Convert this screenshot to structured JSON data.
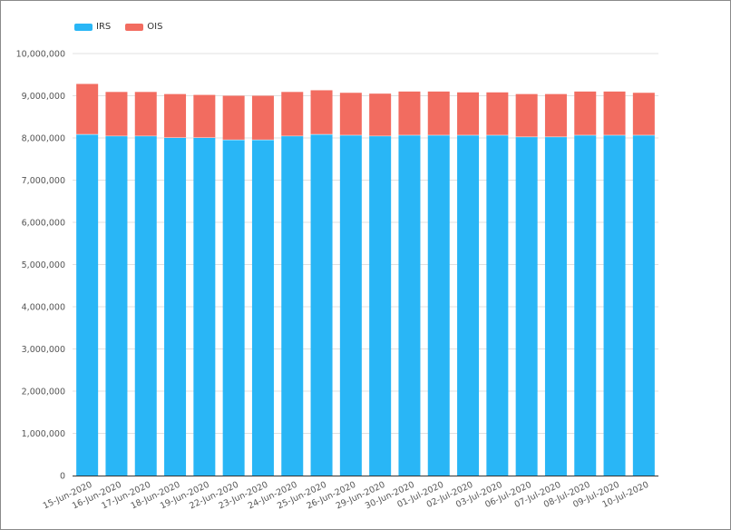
{
  "chart_data": {
    "type": "bar",
    "stacked": true,
    "title": "",
    "xlabel": "",
    "ylabel": "",
    "ylim": [
      0,
      10000000
    ],
    "yticks": [
      0,
      1000000,
      2000000,
      3000000,
      4000000,
      5000000,
      6000000,
      7000000,
      8000000,
      9000000,
      10000000
    ],
    "ytick_labels": [
      "0",
      "1,000,000",
      "2,000,000",
      "3,000,000",
      "4,000,000",
      "5,000,000",
      "6,000,000",
      "7,000,000",
      "8,000,000",
      "9,000,000",
      "10,000,000"
    ],
    "grid": true,
    "legend_position": "top-left",
    "categories": [
      "15-Jun-2020",
      "16-Jun-2020",
      "17-Jun-2020",
      "18-Jun-2020",
      "19-Jun-2020",
      "22-Jun-2020",
      "23-Jun-2020",
      "24-Jun-2020",
      "25-Jun-2020",
      "26-Jun-2020",
      "29-Jun-2020",
      "30-Jun-2020",
      "01-Jul-2020",
      "02-Jul-2020",
      "03-Jul-2020",
      "06-Jul-2020",
      "07-Jul-2020",
      "08-Jul-2020",
      "09-Jul-2020",
      "10-Jul-2020"
    ],
    "series": [
      {
        "name": "IRS",
        "color": "#29b6f6",
        "values": [
          8090000,
          8050000,
          8050000,
          8010000,
          8010000,
          7960000,
          7960000,
          8050000,
          8090000,
          8070000,
          8050000,
          8070000,
          8070000,
          8070000,
          8070000,
          8030000,
          8030000,
          8070000,
          8070000,
          8070000
        ]
      },
      {
        "name": "OIS",
        "color": "#f26c60",
        "values": [
          1190000,
          1040000,
          1040000,
          1030000,
          1010000,
          1040000,
          1040000,
          1040000,
          1040000,
          1000000,
          1000000,
          1030000,
          1030000,
          1010000,
          1010000,
          1010000,
          1010000,
          1030000,
          1030000,
          1000000
        ]
      }
    ]
  }
}
